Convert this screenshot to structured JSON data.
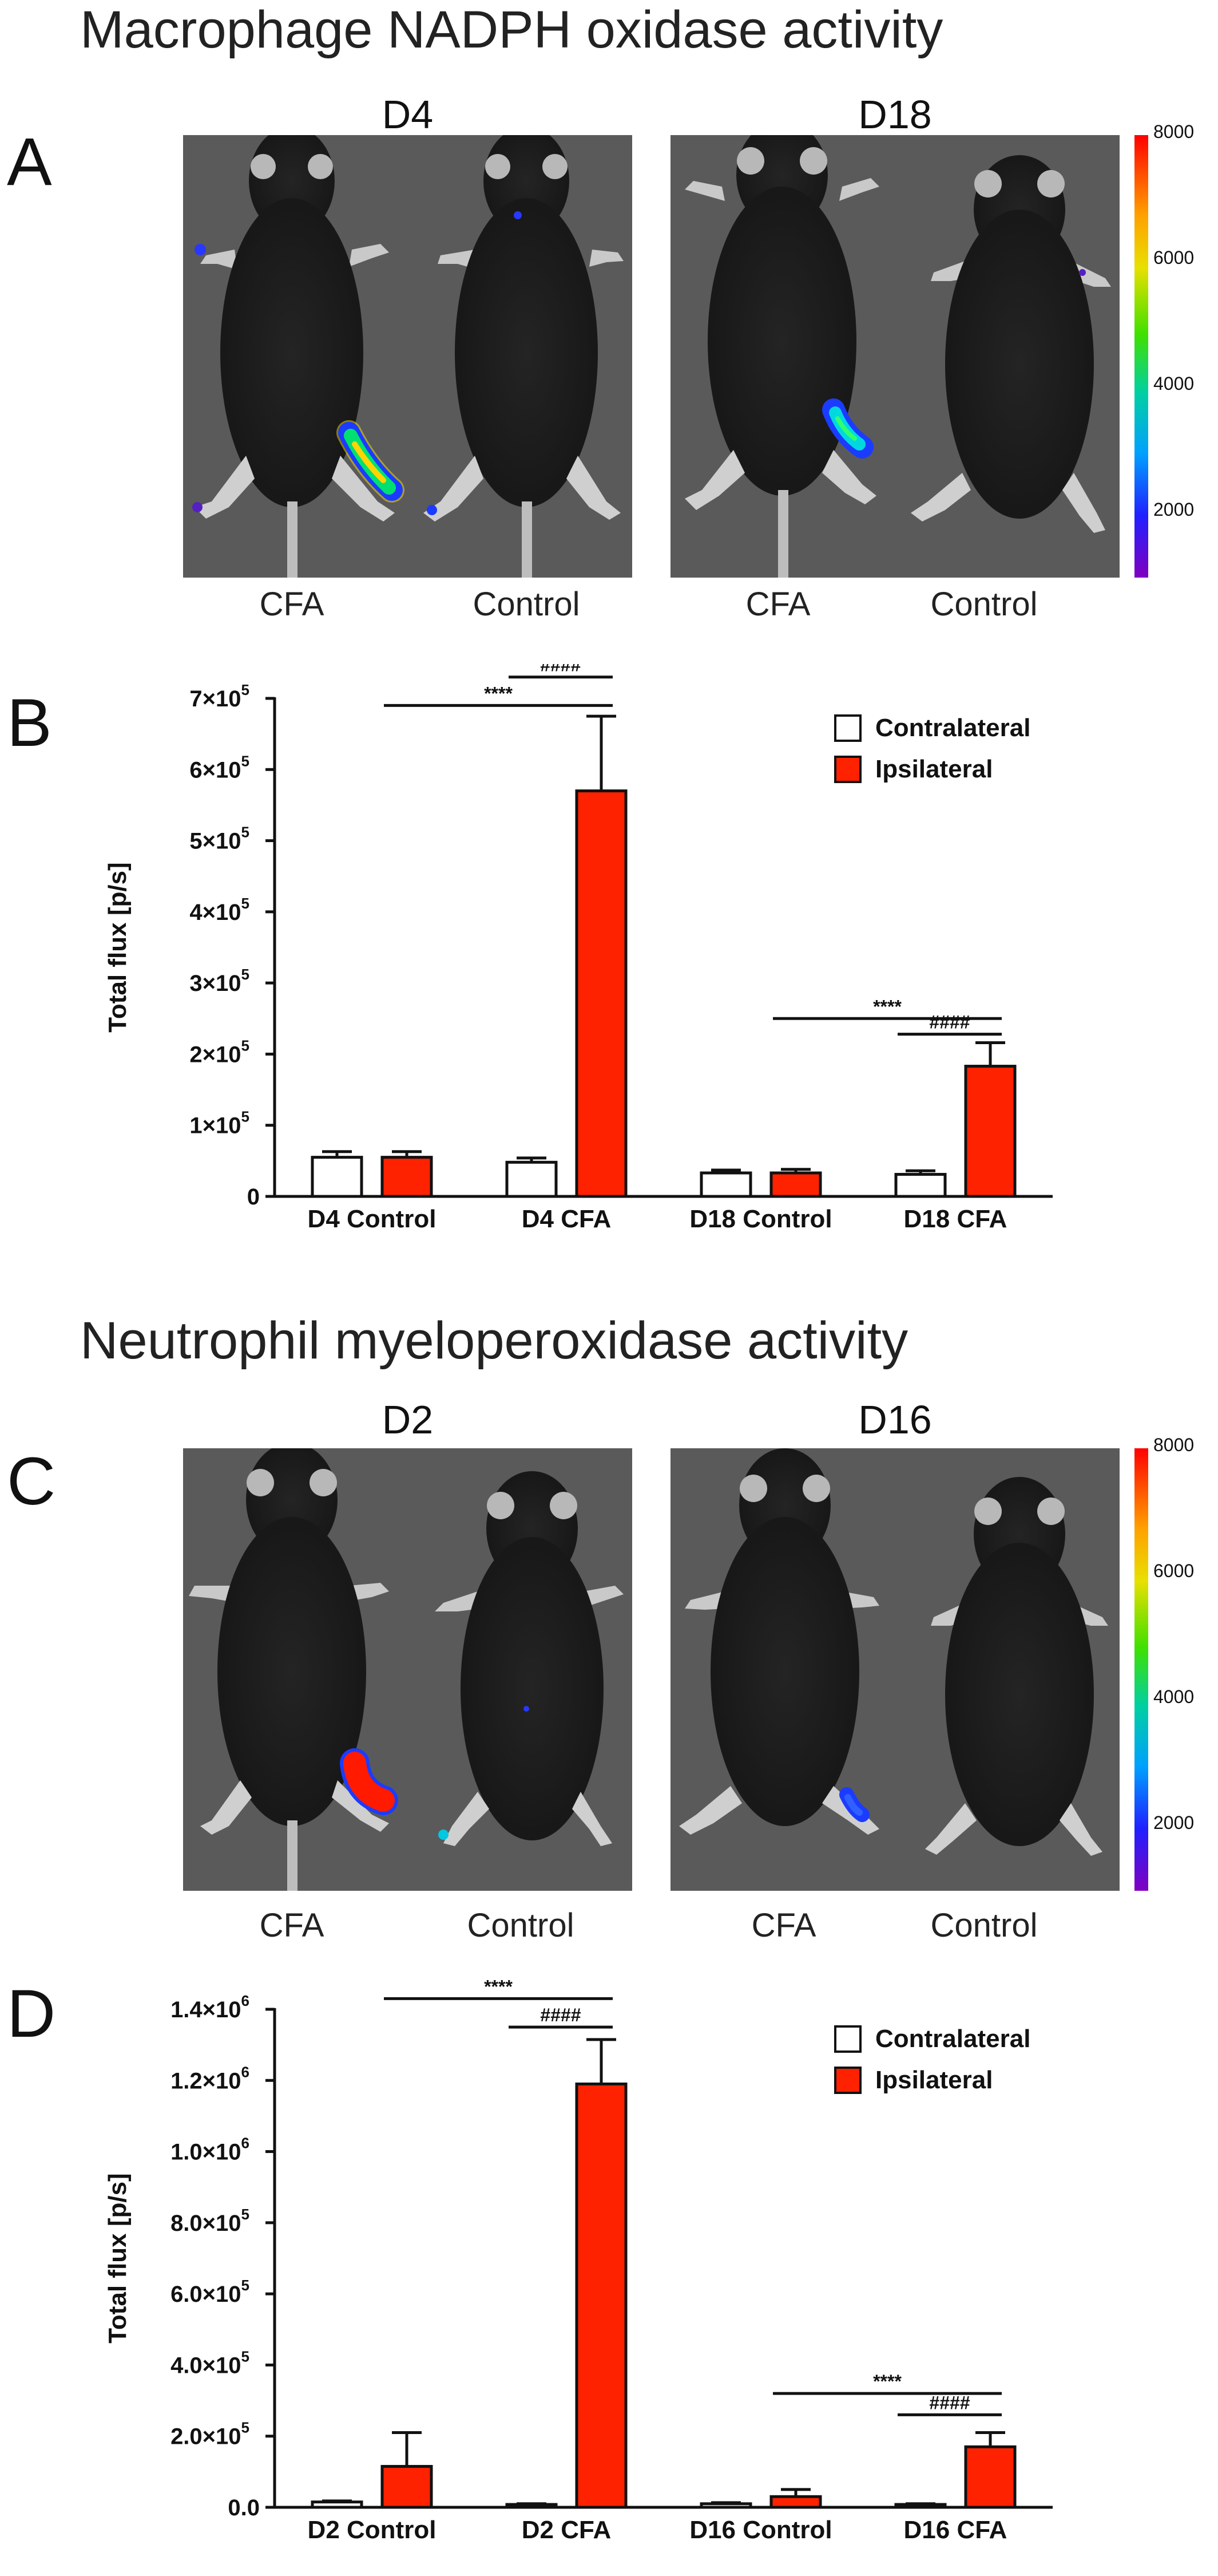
{
  "sections": [
    {
      "title": "Macrophage NADPH oxidase activity",
      "image_panel": {
        "letter": "A",
        "timepoints": [
          "D4",
          "D18"
        ],
        "mouse_labels": [
          "CFA",
          "Control",
          "CFA",
          "Control"
        ],
        "colorbar_ticks": [
          "8000",
          "6000",
          "4000",
          "2000"
        ]
      },
      "chart_letter": "B"
    },
    {
      "title": "Neutrophil myeloperoxidase activity",
      "image_panel": {
        "letter": "C",
        "timepoints": [
          "D2",
          "D16"
        ],
        "mouse_labels": [
          "CFA",
          "Control",
          "CFA",
          "Control"
        ],
        "colorbar_ticks": [
          "8000",
          "6000",
          "4000",
          "2000"
        ]
      },
      "chart_letter": "D"
    }
  ],
  "chart_data": [
    {
      "type": "bar",
      "ylabel": "Total flux [p/s]",
      "ylim": [
        0,
        700000
      ],
      "yticks": [
        {
          "value": 0,
          "mant": "0",
          "exp": ""
        },
        {
          "value": 100000,
          "mant": "1×10",
          "exp": "5"
        },
        {
          "value": 200000,
          "mant": "2×10",
          "exp": "5"
        },
        {
          "value": 300000,
          "mant": "3×10",
          "exp": "5"
        },
        {
          "value": 400000,
          "mant": "4×10",
          "exp": "5"
        },
        {
          "value": 500000,
          "mant": "5×10",
          "exp": "5"
        },
        {
          "value": 600000,
          "mant": "6×10",
          "exp": "5"
        },
        {
          "value": 700000,
          "mant": "7×10",
          "exp": "5"
        }
      ],
      "categories": [
        "D4 Control",
        "D4 CFA",
        "D18 Control",
        "D18 CFA"
      ],
      "series": [
        {
          "name": "Contralateral",
          "color": "#ffffff",
          "values": [
            55000,
            48000,
            33000,
            31000
          ],
          "errors": [
            8000,
            6000,
            4000,
            5000
          ]
        },
        {
          "name": "Ipsilateral",
          "color": "#ff2200",
          "values": [
            55000,
            570000,
            33000,
            183000
          ],
          "errors": [
            8000,
            105000,
            5000,
            33000
          ]
        }
      ],
      "legend_position": "top-right",
      "significance": [
        {
          "label": "####",
          "from": [
            1,
            0
          ],
          "to": [
            1,
            1
          ],
          "y": 730000
        },
        {
          "label": "****",
          "from": [
            0,
            1
          ],
          "to": [
            1,
            1
          ],
          "y": 690000
        },
        {
          "label": "****",
          "from": [
            2,
            1
          ],
          "to": [
            3,
            1
          ],
          "y": 250000
        },
        {
          "label": "####",
          "from": [
            3,
            0
          ],
          "to": [
            3,
            1
          ],
          "y": 228000
        }
      ]
    },
    {
      "type": "bar",
      "ylabel": "Total flux [p/s]",
      "ylim": [
        0,
        1400000
      ],
      "yticks": [
        {
          "value": 0,
          "mant": "0.0",
          "exp": ""
        },
        {
          "value": 200000,
          "mant": "2.0×10",
          "exp": "5"
        },
        {
          "value": 400000,
          "mant": "4.0×10",
          "exp": "5"
        },
        {
          "value": 600000,
          "mant": "6.0×10",
          "exp": "5"
        },
        {
          "value": 800000,
          "mant": "8.0×10",
          "exp": "5"
        },
        {
          "value": 1000000,
          "mant": "1.0×10",
          "exp": "6"
        },
        {
          "value": 1200000,
          "mant": "1.2×10",
          "exp": "6"
        },
        {
          "value": 1400000,
          "mant": "1.4×10",
          "exp": "6"
        }
      ],
      "categories": [
        "D2 Control",
        "D2 CFA",
        "D16 Control",
        "D16 CFA"
      ],
      "series": [
        {
          "name": "Contralateral",
          "color": "#ffffff",
          "values": [
            15000,
            8000,
            10000,
            8000
          ],
          "errors": [
            3000,
            2000,
            3000,
            2000
          ]
        },
        {
          "name": "Ipsilateral",
          "color": "#ff2200",
          "values": [
            115000,
            1190000,
            30000,
            170000
          ],
          "errors": [
            95000,
            125000,
            20000,
            40000
          ]
        }
      ],
      "legend_position": "top-right",
      "significance": [
        {
          "label": "****",
          "from": [
            0,
            1
          ],
          "to": [
            1,
            1
          ],
          "y": 1430000
        },
        {
          "label": "####",
          "from": [
            1,
            0
          ],
          "to": [
            1,
            1
          ],
          "y": 1350000
        },
        {
          "label": "****",
          "from": [
            2,
            1
          ],
          "to": [
            3,
            1
          ],
          "y": 320000
        },
        {
          "label": "####",
          "from": [
            3,
            0
          ],
          "to": [
            3,
            1
          ],
          "y": 260000
        }
      ]
    }
  ]
}
